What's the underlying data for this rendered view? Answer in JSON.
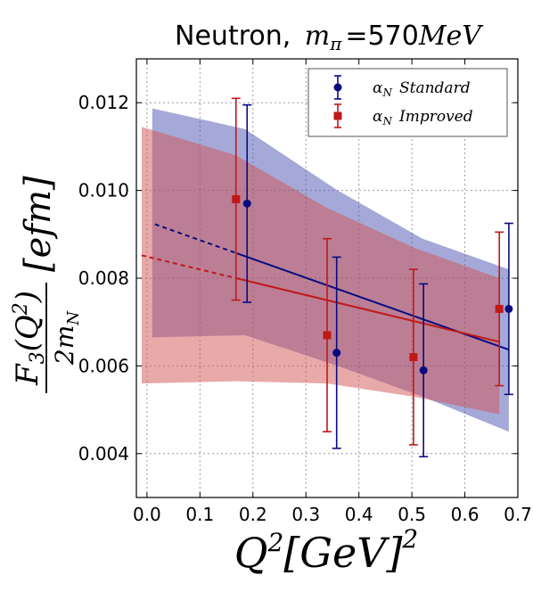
{
  "chart_data": {
    "type": "scatter",
    "title_prefix": "Neutron,",
    "title_math": "m",
    "title_sub": "π",
    "title_eq": "=570",
    "title_unit": "MeV",
    "xlabel_q": "Q",
    "xlabel_exp": "2",
    "xlabel_unit": "[GeV]",
    "xlabel_exp2": "2",
    "ylabel_num": "F",
    "ylabel_num_sub": "3",
    "ylabel_num_arg": "(Q",
    "ylabel_num_arg_exp": "2",
    "ylabel_num_close": ")",
    "ylabel_den": "2m",
    "ylabel_den_sub": "N",
    "ylabel_unit": "[efm]",
    "xlim": [
      -0.02,
      0.7
    ],
    "ylim": [
      0.003,
      0.013
    ],
    "grid": true,
    "legend_position": "top-right",
    "x_ticks": [
      "0.0",
      "0.1",
      "0.2",
      "0.3",
      "0.4",
      "0.5",
      "0.6",
      "0.7"
    ],
    "y_ticks": [
      "0.004",
      "0.006",
      "0.008",
      "0.010",
      "0.012"
    ],
    "x_tick_values": [
      0.0,
      0.1,
      0.2,
      0.3,
      0.4,
      0.5,
      0.6,
      0.7
    ],
    "y_tick_values": [
      0.004,
      0.006,
      0.008,
      0.01,
      0.012
    ],
    "series": [
      {
        "name_sym": "α",
        "name_sub": "N",
        "name_text": "Standard",
        "marker": "circle",
        "color": "#0a0a80",
        "band_color": "#4b53b0",
        "x": [
          0.189,
          0.358,
          0.522,
          0.683
        ],
        "y": [
          0.0097,
          0.0063,
          0.0059,
          0.0073
        ],
        "yerr": [
          0.00225,
          0.00218,
          0.00197,
          0.00195
        ],
        "fit": {
          "x0": 0.015,
          "y0": 0.00923,
          "xd": 0.17,
          "x1": 0.683,
          "y1": 0.00637
        },
        "band_upper": [
          [
            0.01,
            0.01187
          ],
          [
            0.185,
            0.0114
          ],
          [
            0.36,
            0.01
          ],
          [
            0.52,
            0.0089
          ],
          [
            0.683,
            0.0082
          ]
        ],
        "band_lower": [
          [
            0.01,
            0.00665
          ],
          [
            0.185,
            0.0067
          ],
          [
            0.36,
            0.006
          ],
          [
            0.52,
            0.0053
          ],
          [
            0.683,
            0.0045
          ]
        ]
      },
      {
        "name_sym": "α",
        "name_sub": "N",
        "name_text": "Improved",
        "marker": "square",
        "color": "#c01818",
        "band_color": "#d25454",
        "x": [
          0.168,
          0.34,
          0.503,
          0.665
        ],
        "y": [
          0.0098,
          0.0067,
          0.0062,
          0.0073
        ],
        "yerr": [
          0.0023,
          0.0022,
          0.002,
          0.00175
        ],
        "fit": {
          "x0": -0.01,
          "y0": 0.00852,
          "xd": 0.17,
          "x1": 0.665,
          "y1": 0.00655
        },
        "band_upper": [
          [
            -0.01,
            0.01145
          ],
          [
            0.168,
            0.0108
          ],
          [
            0.34,
            0.0096
          ],
          [
            0.503,
            0.0087
          ],
          [
            0.665,
            0.008
          ]
        ],
        "band_lower": [
          [
            -0.01,
            0.0056
          ],
          [
            0.168,
            0.00565
          ],
          [
            0.34,
            0.0056
          ],
          [
            0.503,
            0.0053
          ],
          [
            0.665,
            0.0049
          ]
        ]
      }
    ]
  }
}
